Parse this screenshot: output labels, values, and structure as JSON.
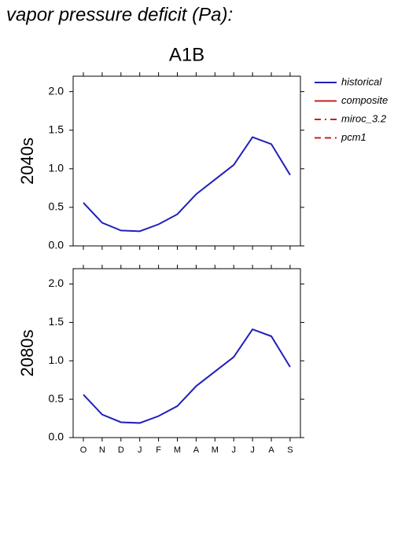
{
  "title": "vapor pressure deficit (Pa):",
  "legend": [
    {
      "name": "historical",
      "color": "#2020b8",
      "dash": "solid"
    },
    {
      "name": "composite",
      "color": "#c82020",
      "dash": "solid"
    },
    {
      "name": "miroc_3.2",
      "color": "#c82020",
      "dash": "dashdot"
    },
    {
      "name": "pcm1",
      "color": "#c82020",
      "dash": "dashed"
    }
  ],
  "chart_data": [
    {
      "type": "line",
      "title": "A1B",
      "ylabel": "2040s",
      "categories": [
        "O",
        "N",
        "D",
        "J",
        "F",
        "M",
        "A",
        "M",
        "J",
        "J",
        "A",
        "S"
      ],
      "series": [
        {
          "name": "historical",
          "color": "#2020b8",
          "values": [
            0.56,
            0.3,
            0.2,
            0.19,
            0.28,
            0.41,
            0.67,
            0.86,
            1.05,
            1.41,
            1.32,
            0.92
          ]
        }
      ],
      "ylim": [
        0,
        2.2
      ],
      "yticks": [
        {
          "value": 0,
          "label": "0.0"
        },
        {
          "value": 0.5,
          "label": "0.5"
        },
        {
          "value": 1,
          "label": "1.0"
        },
        {
          "value": 1.5,
          "label": "1.5"
        },
        {
          "value": 2,
          "label": "2.0"
        }
      ]
    },
    {
      "type": "line",
      "ylabel": "2080s",
      "categories": [
        "O",
        "N",
        "D",
        "J",
        "F",
        "M",
        "A",
        "M",
        "J",
        "J",
        "A",
        "S"
      ],
      "series": [
        {
          "name": "historical",
          "color": "#2020b8",
          "values": [
            0.56,
            0.3,
            0.2,
            0.19,
            0.28,
            0.41,
            0.67,
            0.86,
            1.05,
            1.41,
            1.32,
            0.92
          ]
        }
      ],
      "ylim": [
        0,
        2.2
      ],
      "yticks": [
        {
          "value": 0,
          "label": "0.0"
        },
        {
          "value": 0.5,
          "label": "0.5"
        },
        {
          "value": 1,
          "label": "1.0"
        },
        {
          "value": 1.5,
          "label": "1.5"
        },
        {
          "value": 2,
          "label": "2.0"
        }
      ]
    }
  ]
}
